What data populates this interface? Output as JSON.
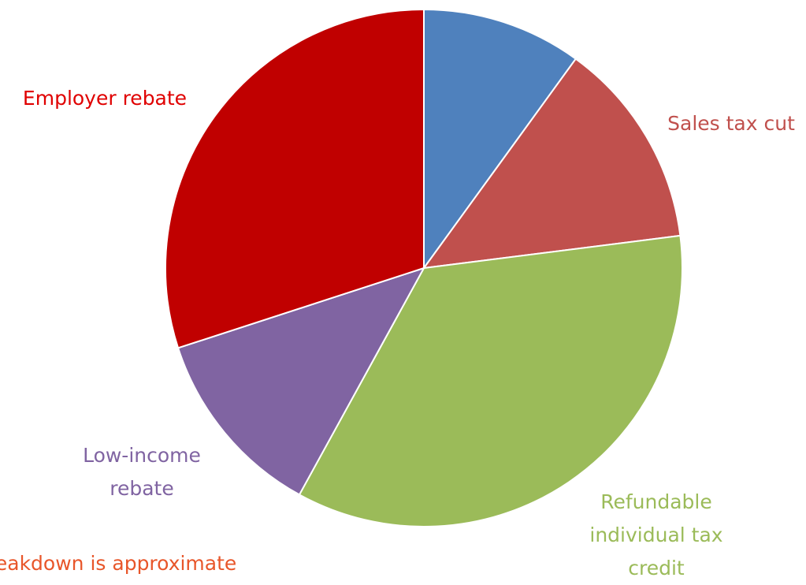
{
  "chart_data": {
    "type": "pie",
    "categories": [
      null,
      "Sales tax cut",
      "Refundable individual tax credit",
      "Low-income rebate",
      "Employer rebate"
    ],
    "values": [
      10,
      13,
      35,
      12,
      30
    ],
    "colors": [
      "#4f81bd",
      "#c0504d",
      "#9bbb59",
      "#8064a2",
      "#c00000"
    ],
    "label_colors": [
      "#4f81bd",
      "#c0504d",
      "#9bbb59",
      "#8064a2",
      "#e00000"
    ],
    "note": "Breakdown is approximate",
    "note_color": "#e8562a"
  }
}
